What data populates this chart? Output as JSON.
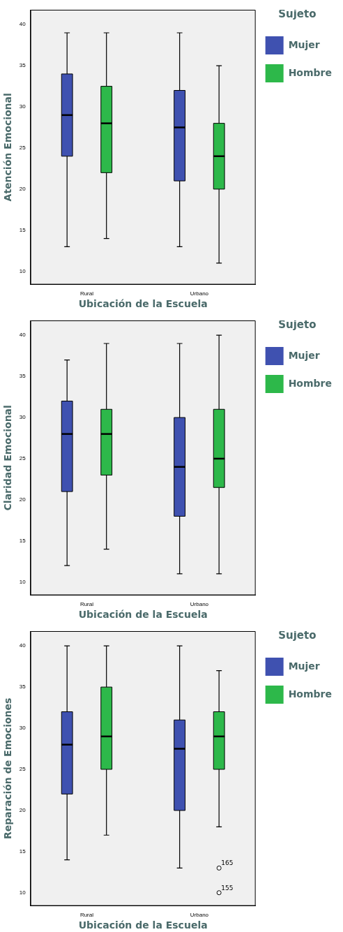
{
  "chart_data": [
    {
      "type": "box",
      "xlabel": "Ubicación de la Escuela",
      "ylabel": "Atención Emocional",
      "legend_title": "Sujeto",
      "legend": "right",
      "grid": false,
      "categories": [
        "Rural",
        "Urbano"
      ],
      "ylim": [
        8.4,
        41.8
      ],
      "yticks": [
        10,
        15,
        20,
        25,
        30,
        35,
        40
      ],
      "series": [
        {
          "name": "Mujer",
          "color": "#3f51b0",
          "boxes": [
            {
              "low": 13,
              "q1": 24,
              "median": 29,
              "q3": 34,
              "high": 39
            },
            {
              "low": 13,
              "q1": 21,
              "median": 27.5,
              "q3": 32,
              "high": 39
            }
          ]
        },
        {
          "name": "Hombre",
          "color": "#2db84a",
          "boxes": [
            {
              "low": 14,
              "q1": 22,
              "median": 28,
              "q3": 32.5,
              "high": 39
            },
            {
              "low": 11,
              "q1": 20,
              "median": 24,
              "q3": 28,
              "high": 35
            }
          ]
        }
      ]
    },
    {
      "type": "box",
      "xlabel": "Ubicación de la Escuela",
      "ylabel": "Claridad Emocional",
      "legend_title": "Sujeto",
      "legend": "right",
      "grid": false,
      "categories": [
        "Rural",
        "Urbano"
      ],
      "ylim": [
        8.4,
        41.8
      ],
      "yticks": [
        10,
        15,
        20,
        25,
        30,
        35,
        40
      ],
      "series": [
        {
          "name": "Mujer",
          "color": "#3f51b0",
          "boxes": [
            {
              "low": 12,
              "q1": 21,
              "median": 28,
              "q3": 32,
              "high": 37
            },
            {
              "low": 11,
              "q1": 18,
              "median": 24,
              "q3": 30,
              "high": 39
            }
          ]
        },
        {
          "name": "Hombre",
          "color": "#2db84a",
          "boxes": [
            {
              "low": 14,
              "q1": 23,
              "median": 28,
              "q3": 31,
              "high": 39
            },
            {
              "low": 11,
              "q1": 21.5,
              "median": 25,
              "q3": 31,
              "high": 40
            }
          ]
        }
      ]
    },
    {
      "type": "box",
      "xlabel": "Ubicación de la Escuela",
      "ylabel": "Reparación de Emociones",
      "legend_title": "Sujeto",
      "legend": "right",
      "grid": false,
      "categories": [
        "Rural",
        "Urbano"
      ],
      "ylim": [
        8.4,
        41.8
      ],
      "yticks": [
        10,
        15,
        20,
        25,
        30,
        35,
        40
      ],
      "annotations": [
        "165",
        "155"
      ],
      "series": [
        {
          "name": "Mujer",
          "color": "#3f51b0",
          "boxes": [
            {
              "low": 14,
              "q1": 22,
              "median": 28,
              "q3": 32,
              "high": 40
            },
            {
              "low": 13,
              "q1": 20,
              "median": 27.5,
              "q3": 31,
              "high": 40
            }
          ]
        },
        {
          "name": "Hombre",
          "color": "#2db84a",
          "boxes": [
            {
              "low": 17,
              "q1": 25,
              "median": 29,
              "q3": 35,
              "high": 40
            },
            {
              "low": 18,
              "q1": 25,
              "median": 29,
              "q3": 32,
              "high": 37,
              "outliers": [
                13,
                10
              ]
            }
          ]
        }
      ]
    }
  ]
}
